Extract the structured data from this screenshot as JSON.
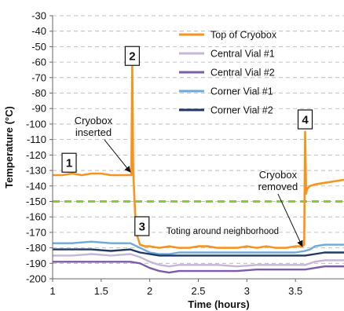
{
  "chart_data": {
    "type": "line",
    "xlabel": "Time (hours)",
    "ylabel": "Temperature (°C)",
    "xlim": [
      1,
      4
    ],
    "ylim": [
      -200,
      -30
    ],
    "xticks": [
      1,
      1.5,
      2,
      2.5,
      3,
      3.5
    ],
    "xtick_labels": [
      "1",
      "1.5",
      "2",
      "2.5",
      "3",
      "3.5"
    ],
    "yticks": [
      -30,
      -40,
      -50,
      -60,
      -70,
      -80,
      -90,
      -100,
      -110,
      -120,
      -130,
      -140,
      -150,
      -160,
      -170,
      -180,
      -190,
      -200
    ],
    "ytick_labels": [
      "-30",
      "-40",
      "-50",
      "-60",
      "-70",
      "-80",
      "-90",
      "-100",
      "-110",
      "-120",
      "-130",
      "-140",
      "-150",
      "-160",
      "-170",
      "-180",
      "-190",
      "-200"
    ],
    "grid": "horizontal dashed",
    "legend_position": "top-right",
    "threshold": {
      "value": -150,
      "color": "#8dc63f",
      "style": "dashed"
    },
    "series": [
      {
        "name": "Top of Cryobox",
        "color": "#f7941d",
        "x": [
          1.0,
          1.1,
          1.2,
          1.3,
          1.4,
          1.5,
          1.6,
          1.7,
          1.78,
          1.81,
          1.82,
          1.83,
          1.84,
          1.85,
          1.86,
          1.87,
          1.9,
          1.95,
          2.0,
          2.1,
          2.2,
          2.3,
          2.4,
          2.5,
          2.6,
          2.7,
          2.8,
          2.9,
          3.0,
          3.1,
          3.2,
          3.3,
          3.4,
          3.5,
          3.57,
          3.59,
          3.6,
          3.61,
          3.62,
          3.65,
          3.7,
          3.8,
          3.9,
          4.0
        ],
        "y": [
          -133,
          -133,
          -132,
          -133,
          -132,
          -132,
          -133,
          -133,
          -133,
          -133,
          -62,
          -130,
          -145,
          -158,
          -165,
          -172,
          -178,
          -179,
          -179,
          -180,
          -179,
          -180,
          -180,
          -179,
          -179,
          -180,
          -180,
          -180,
          -179,
          -180,
          -179,
          -180,
          -180,
          -179,
          -179,
          -178,
          -105,
          -145,
          -142,
          -140,
          -139,
          -138,
          -137,
          -136
        ]
      },
      {
        "name": "Central Vial #1",
        "color": "#c5b6d6",
        "x": [
          1.0,
          1.2,
          1.4,
          1.6,
          1.8,
          1.9,
          2.0,
          2.1,
          2.2,
          2.3,
          2.5,
          2.7,
          2.9,
          3.1,
          3.3,
          3.5,
          3.6,
          3.7,
          3.8,
          4.0
        ],
        "y": [
          -185,
          -185,
          -184,
          -185,
          -184,
          -186,
          -189,
          -191,
          -192,
          -191,
          -191,
          -191,
          -192,
          -191,
          -191,
          -191,
          -191,
          -189,
          -188,
          -188
        ]
      },
      {
        "name": "Central Vial #2",
        "color": "#7d5ba6",
        "x": [
          1.0,
          1.2,
          1.4,
          1.6,
          1.8,
          1.9,
          2.0,
          2.1,
          2.2,
          2.3,
          2.5,
          2.7,
          2.9,
          3.1,
          3.3,
          3.5,
          3.6,
          3.7,
          3.8,
          4.0
        ],
        "y": [
          -189,
          -189,
          -189,
          -189,
          -189,
          -190,
          -193,
          -195,
          -196,
          -195,
          -195,
          -195,
          -195,
          -194,
          -194,
          -194,
          -194,
          -193,
          -192,
          -192
        ]
      },
      {
        "name": "Corner Vial #1",
        "color": "#6fa8dc",
        "x": [
          1.0,
          1.2,
          1.4,
          1.6,
          1.8,
          1.9,
          2.0,
          2.1,
          2.2,
          2.3,
          2.5,
          2.7,
          2.9,
          3.1,
          3.3,
          3.5,
          3.6,
          3.65,
          3.7,
          3.8,
          4.0
        ],
        "y": [
          -177,
          -177,
          -176,
          -177,
          -177,
          -180,
          -183,
          -184,
          -184,
          -183,
          -183,
          -183,
          -183,
          -183,
          -183,
          -183,
          -182,
          -181,
          -179,
          -178,
          -178
        ]
      },
      {
        "name": "Corner Vial #2",
        "color": "#1f3864",
        "x": [
          1.0,
          1.2,
          1.4,
          1.6,
          1.8,
          1.9,
          2.0,
          2.1,
          2.2,
          2.3,
          2.5,
          2.7,
          2.9,
          3.1,
          3.3,
          3.5,
          3.6,
          3.7,
          3.8,
          4.0
        ],
        "y": [
          -181,
          -181,
          -181,
          -182,
          -181,
          -183,
          -184,
          -185,
          -185,
          -185,
          -185,
          -185,
          -185,
          -185,
          -185,
          -185,
          -185,
          -184,
          -183,
          -183
        ]
      }
    ],
    "markers": [
      {
        "label": "1",
        "x": 1.17,
        "y": -125
      },
      {
        "label": "2",
        "x": 1.82,
        "y": -56
      },
      {
        "label": "3",
        "x": 1.92,
        "y": -166
      },
      {
        "label": "4",
        "x": 3.6,
        "y": -97
      }
    ],
    "annotations": [
      {
        "lines": [
          "Cryobox",
          "inserted"
        ],
        "x": 1.42,
        "y": -100,
        "arrow_to": [
          1.8,
          -131
        ]
      },
      {
        "lines": [
          "Toting around neighborhood"
        ],
        "x": 2.75,
        "y": -171
      },
      {
        "lines": [
          "Cryobox",
          "removed"
        ],
        "x": 3.32,
        "y": -135,
        "arrow_to": [
          3.57,
          -179
        ]
      }
    ]
  }
}
